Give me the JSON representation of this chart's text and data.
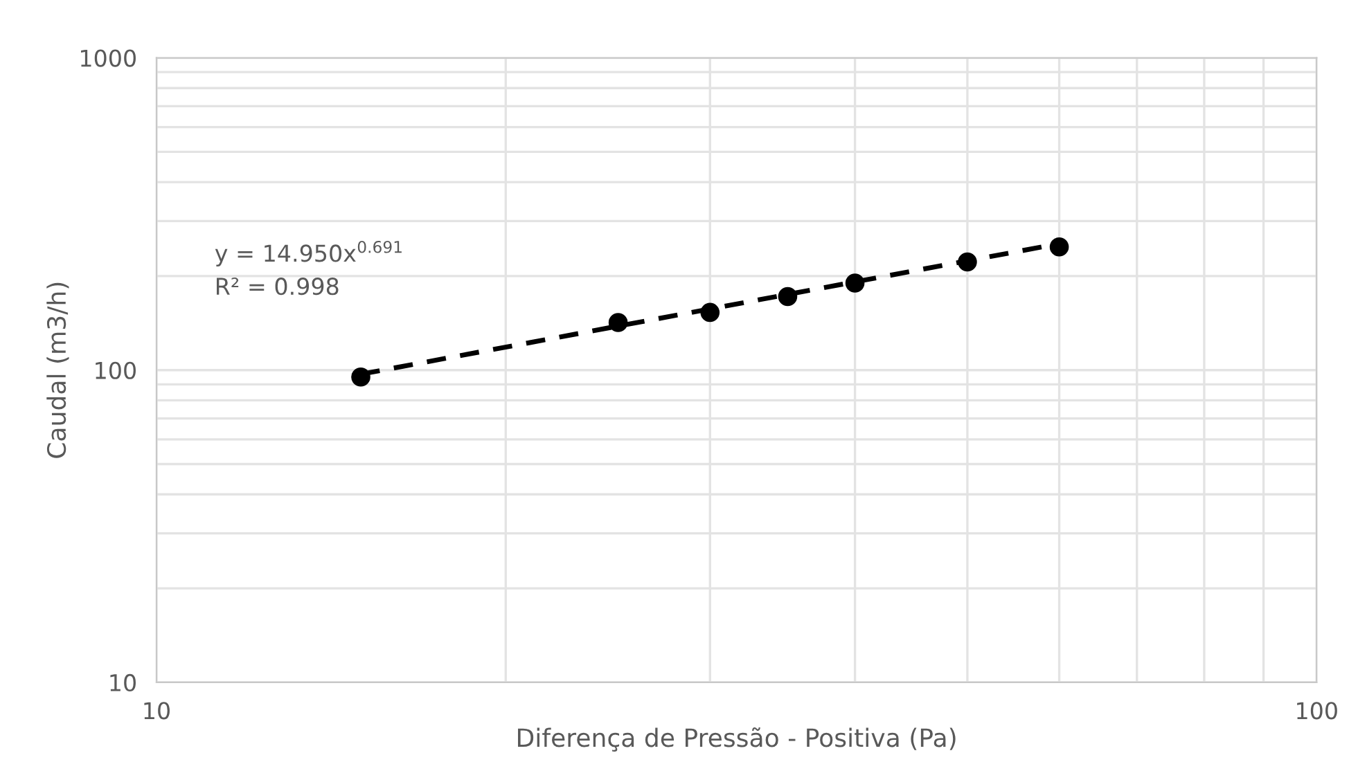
{
  "chart_data": {
    "type": "scatter",
    "xlabel": "Diferença de Pressão - Positiva (Pa)",
    "ylabel": "Caudal (m3/h)",
    "log": "xy",
    "grid": true,
    "legend": false,
    "xlim": [
      10,
      100
    ],
    "ylim": [
      10,
      1000
    ],
    "xticks": [
      10,
      {
        "value": 20,
        "label": null
      },
      {
        "value": 30,
        "label": null
      },
      {
        "value": 40,
        "label": null
      },
      {
        "value": 50,
        "label": null
      },
      {
        "value": 60,
        "label": null
      },
      {
        "value": 70,
        "label": null
      },
      {
        "value": 80,
        "label": null
      },
      {
        "value": 90,
        "label": null
      },
      100
    ],
    "yticks": [
      10,
      {
        "value": 20,
        "label": null
      },
      {
        "value": 30,
        "label": null
      },
      {
        "value": 40,
        "label": null
      },
      {
        "value": 50,
        "label": null
      },
      {
        "value": 60,
        "label": null
      },
      {
        "value": 70,
        "label": null
      },
      {
        "value": 80,
        "label": null
      },
      {
        "value": 90,
        "label": null
      },
      100,
      {
        "value": 200,
        "label": null
      },
      {
        "value": 300,
        "label": null
      },
      {
        "value": 400,
        "label": null
      },
      {
        "value": 500,
        "label": null
      },
      {
        "value": 600,
        "label": null
      },
      {
        "value": 700,
        "label": null
      },
      {
        "value": 800,
        "label": null
      },
      {
        "value": 900,
        "label": null
      },
      1000
    ],
    "series": [
      {
        "color": "#000000",
        "marker": "circle",
        "x": [
          15,
          25,
          30,
          35,
          40,
          50,
          60
        ],
        "values": [
          95,
          142,
          153,
          172,
          190,
          222,
          248
        ]
      },
      {
        "type": "line",
        "color": "#000000",
        "line_style": "dashed",
        "marker": "none",
        "x": [
          15,
          60
        ],
        "values": [
          97,
          254
        ]
      }
    ],
    "annotations": [
      "y = 14.950x$^{0.691}$\nR² = 0.998"
    ]
  }
}
